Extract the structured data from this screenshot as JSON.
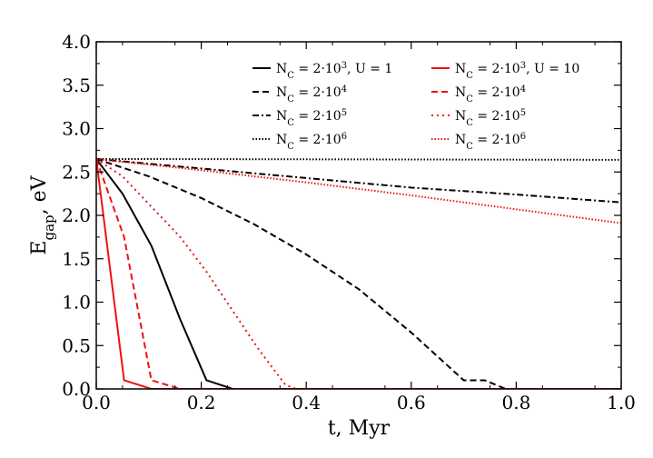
{
  "chart_data": {
    "type": "line",
    "title": "",
    "xlabel": "t, Myr",
    "ylabel": "E_gap, eV",
    "ylabel_main": "E",
    "ylabel_sub": "gap",
    "ylabel_rest": ", eV",
    "xlim": [
      0.0,
      1.0
    ],
    "ylim": [
      0.0,
      4.0
    ],
    "xticks": [
      "0.0",
      "0.2",
      "0.4",
      "0.6",
      "0.8",
      "1.0"
    ],
    "yticks": [
      "0.0",
      "0.5",
      "1.0",
      "1.5",
      "2.0",
      "2.5",
      "3.0",
      "3.5",
      "4.0"
    ],
    "grid": false,
    "legend_position": "top-right",
    "series": [
      {
        "name": "N_C = 2·10^3, U = 1",
        "legend": {
          "pre": "N",
          "sub": "C",
          "mid": " = 2·10",
          "sup": "3",
          "post": ", U = 1"
        },
        "color": "#000000",
        "dash": "solid",
        "x": [
          0.0,
          0.05,
          0.105,
          0.16,
          0.21,
          0.26,
          1.0
        ],
        "y": [
          2.65,
          2.25,
          1.65,
          0.8,
          0.1,
          0.0,
          0.0
        ]
      },
      {
        "name": "N_C = 2·10^4",
        "legend": {
          "pre": "N",
          "sub": "C",
          "mid": " = 2·10",
          "sup": "4",
          "post": ""
        },
        "color": "#000000",
        "dash": "dashed",
        "x": [
          0.0,
          0.1,
          0.2,
          0.3,
          0.4,
          0.5,
          0.6,
          0.7,
          0.74,
          0.78,
          1.0
        ],
        "y": [
          2.65,
          2.45,
          2.2,
          1.9,
          1.55,
          1.15,
          0.65,
          0.1,
          0.1,
          0.0,
          0.0
        ]
      },
      {
        "name": "N_C = 2·10^5",
        "legend": {
          "pre": "N",
          "sub": "C",
          "mid": " = 2·10",
          "sup": "5",
          "post": ""
        },
        "color": "#000000",
        "dash": "dashdot",
        "x": [
          0.0,
          0.2,
          0.4,
          0.6,
          0.8,
          1.0
        ],
        "y": [
          2.65,
          2.54,
          2.43,
          2.32,
          2.24,
          2.15
        ]
      },
      {
        "name": "N_C = 2·10^6",
        "legend": {
          "pre": "N",
          "sub": "C",
          "mid": " = 2·10",
          "sup": "6",
          "post": ""
        },
        "color": "#000000",
        "dash": "dotted",
        "x": [
          0.0,
          1.0
        ],
        "y": [
          2.65,
          2.64
        ]
      },
      {
        "name": "N_C = 2·10^3, U = 10",
        "legend": {
          "pre": "N",
          "sub": "C",
          "mid": " = 2·10",
          "sup": "3",
          "post": ", U = 10"
        },
        "color": "#ee1111",
        "dash": "solid",
        "x": [
          0.0,
          0.053,
          0.105,
          0.13,
          1.0
        ],
        "y": [
          2.65,
          0.1,
          0.0,
          0.0,
          0.0
        ]
      },
      {
        "name": "N_C = 2·10^4",
        "legend": {
          "pre": "N",
          "sub": "C",
          "mid": " = 2·10",
          "sup": "4",
          "post": ""
        },
        "color": "#ee1111",
        "dash": "dashed",
        "x": [
          0.0,
          0.053,
          0.105,
          0.16,
          1.0
        ],
        "y": [
          2.65,
          1.75,
          0.1,
          0.0,
          0.0
        ]
      },
      {
        "name": "N_C = 2·10^5",
        "legend": {
          "pre": "N",
          "sub": "C",
          "mid": " = 2·10",
          "sup": "5",
          "post": ""
        },
        "color": "#ee1111",
        "dash": "dotted-sparse",
        "x": [
          0.0,
          0.05,
          0.105,
          0.16,
          0.21,
          0.26,
          0.31,
          0.36,
          0.38,
          0.42,
          1.0
        ],
        "y": [
          2.65,
          2.45,
          2.1,
          1.75,
          1.35,
          0.9,
          0.45,
          0.05,
          0.0,
          0.0,
          0.0
        ]
      },
      {
        "name": "N_C = 2·10^6",
        "legend": {
          "pre": "N",
          "sub": "C",
          "mid": " = 2·10",
          "sup": "6",
          "post": ""
        },
        "color": "#ee1111",
        "dash": "dotted",
        "x": [
          0.0,
          0.2,
          0.4,
          0.6,
          0.8,
          1.0
        ],
        "y": [
          2.65,
          2.52,
          2.38,
          2.23,
          2.07,
          1.91
        ]
      }
    ]
  }
}
